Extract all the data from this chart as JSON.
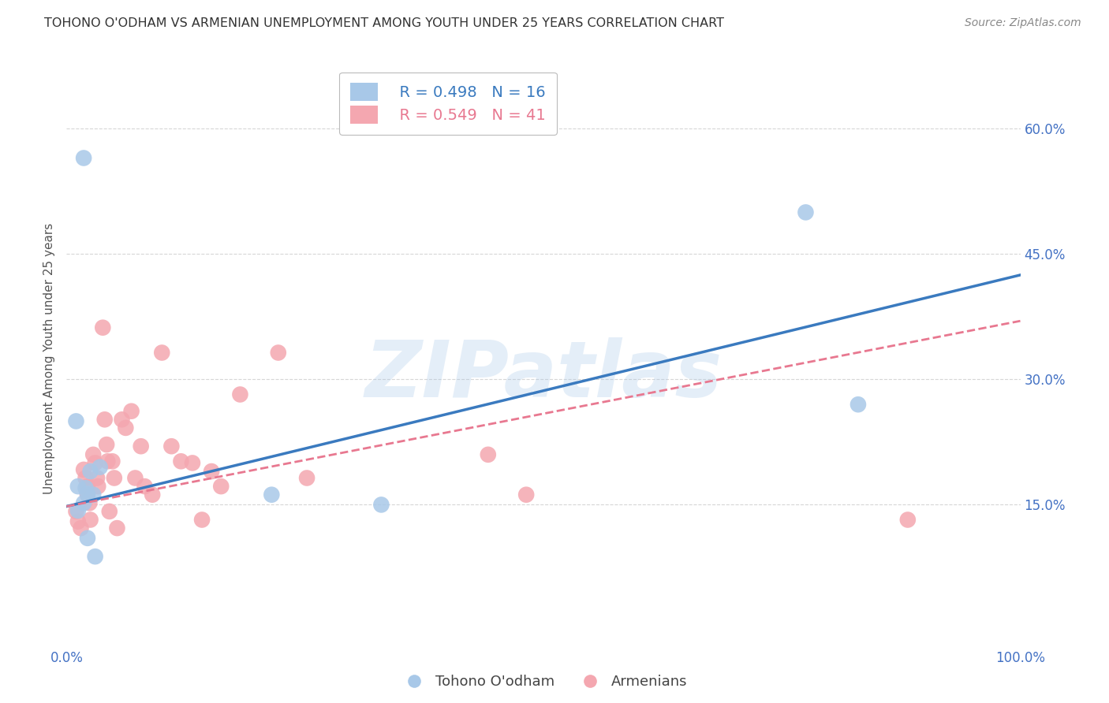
{
  "title": "TOHONO O'ODHAM VS ARMENIAN UNEMPLOYMENT AMONG YOUTH UNDER 25 YEARS CORRELATION CHART",
  "source": "Source: ZipAtlas.com",
  "ylabel": "Unemployment Among Youth under 25 years",
  "watermark": "ZIPatlas",
  "xlim": [
    0.0,
    1.0
  ],
  "ylim": [
    -0.02,
    0.67
  ],
  "yticks": [
    0.15,
    0.3,
    0.45,
    0.6
  ],
  "ytick_labels": [
    "15.0%",
    "30.0%",
    "45.0%",
    "60.0%"
  ],
  "xticks": [
    0.0,
    0.1,
    0.2,
    0.3,
    0.4,
    0.5,
    0.6,
    0.7,
    0.8,
    0.9,
    1.0
  ],
  "xtick_labels": [
    "0.0%",
    "",
    "",
    "",
    "",
    "",
    "",
    "",
    "",
    "",
    "100.0%"
  ],
  "blue_label": "Tohono O'odham",
  "pink_label": "Armenians",
  "blue_R": "R = 0.498",
  "blue_N": "N = 16",
  "pink_R": "R = 0.549",
  "pink_N": "N = 41",
  "blue_color": "#a8c8e8",
  "blue_line_color": "#3a7abf",
  "pink_color": "#f4a7b0",
  "pink_line_color": "#e87890",
  "grid_color": "#cccccc",
  "title_color": "#333333",
  "tick_color": "#4472c4",
  "blue_trend_x": [
    0.0,
    1.0
  ],
  "blue_trend_y": [
    0.148,
    0.425
  ],
  "pink_trend_x": [
    0.0,
    1.0
  ],
  "pink_trend_y": [
    0.148,
    0.37
  ],
  "tohono_x": [
    0.018,
    0.01,
    0.025,
    0.035,
    0.012,
    0.02,
    0.022,
    0.028,
    0.018,
    0.012,
    0.022,
    0.215,
    0.33,
    0.775,
    0.83,
    0.03
  ],
  "tohono_y": [
    0.565,
    0.25,
    0.19,
    0.195,
    0.172,
    0.17,
    0.163,
    0.162,
    0.152,
    0.143,
    0.11,
    0.162,
    0.15,
    0.5,
    0.27,
    0.088
  ],
  "armenian_x": [
    0.01,
    0.012,
    0.015,
    0.018,
    0.02,
    0.022,
    0.022,
    0.024,
    0.025,
    0.028,
    0.03,
    0.032,
    0.033,
    0.038,
    0.04,
    0.042,
    0.043,
    0.045,
    0.048,
    0.05,
    0.053,
    0.058,
    0.062,
    0.068,
    0.072,
    0.078,
    0.082,
    0.09,
    0.1,
    0.11,
    0.12,
    0.132,
    0.142,
    0.152,
    0.162,
    0.182,
    0.222,
    0.252,
    0.442,
    0.482,
    0.882
  ],
  "armenian_y": [
    0.142,
    0.13,
    0.122,
    0.192,
    0.182,
    0.172,
    0.162,
    0.152,
    0.132,
    0.21,
    0.2,
    0.182,
    0.172,
    0.362,
    0.252,
    0.222,
    0.202,
    0.142,
    0.202,
    0.182,
    0.122,
    0.252,
    0.242,
    0.262,
    0.182,
    0.22,
    0.172,
    0.162,
    0.332,
    0.22,
    0.202,
    0.2,
    0.132,
    0.19,
    0.172,
    0.282,
    0.332,
    0.182,
    0.21,
    0.162,
    0.132
  ],
  "background_color": "#ffffff"
}
